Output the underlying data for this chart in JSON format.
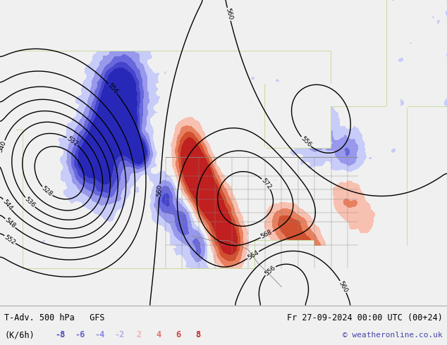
{
  "title_left": "T-Adv. 500 hPa   GFS",
  "title_right": "Fr 27-09-2024 00:00 UTC (00+24)",
  "unit_label": "(K/6h)",
  "neg_labels": [
    "-8",
    "-6",
    "-4",
    "-2"
  ],
  "pos_labels": [
    "2",
    "4",
    "6",
    "8"
  ],
  "neg_colors_text": [
    "#4040c0",
    "#6060d0",
    "#8888e0",
    "#b0b0e8"
  ],
  "pos_colors_text": [
    "#f0b0b0",
    "#e07070",
    "#d04040",
    "#c02020"
  ],
  "copyright": "© weatheronline.co.uk",
  "fig_width": 6.34,
  "fig_height": 4.9,
  "dpi": 100,
  "map_bg": "#f0f0ee",
  "land_color": "#c8e0a0",
  "ocean_color": "#e8eef4",
  "border_color": "#888880",
  "contour_color": "black",
  "bottom_bg": "#f0f0f0",
  "contour_levels": [
    528,
    532,
    536,
    540,
    544,
    548,
    552,
    556,
    560,
    564,
    568,
    572,
    576,
    580,
    584,
    588,
    592
  ],
  "tadv_levels": [
    -20,
    -8,
    -6,
    -4,
    -2,
    -0.5,
    0.5,
    2,
    4,
    6,
    8,
    20
  ],
  "tadv_colors": [
    "#2828b8",
    "#4444cc",
    "#6868dc",
    "#9898ec",
    "#c8ccf8",
    "#f0f0f0",
    "#f0f0f0",
    "#f8c0b0",
    "#e88060",
    "#d05030",
    "#c02020",
    "#a00000"
  ]
}
